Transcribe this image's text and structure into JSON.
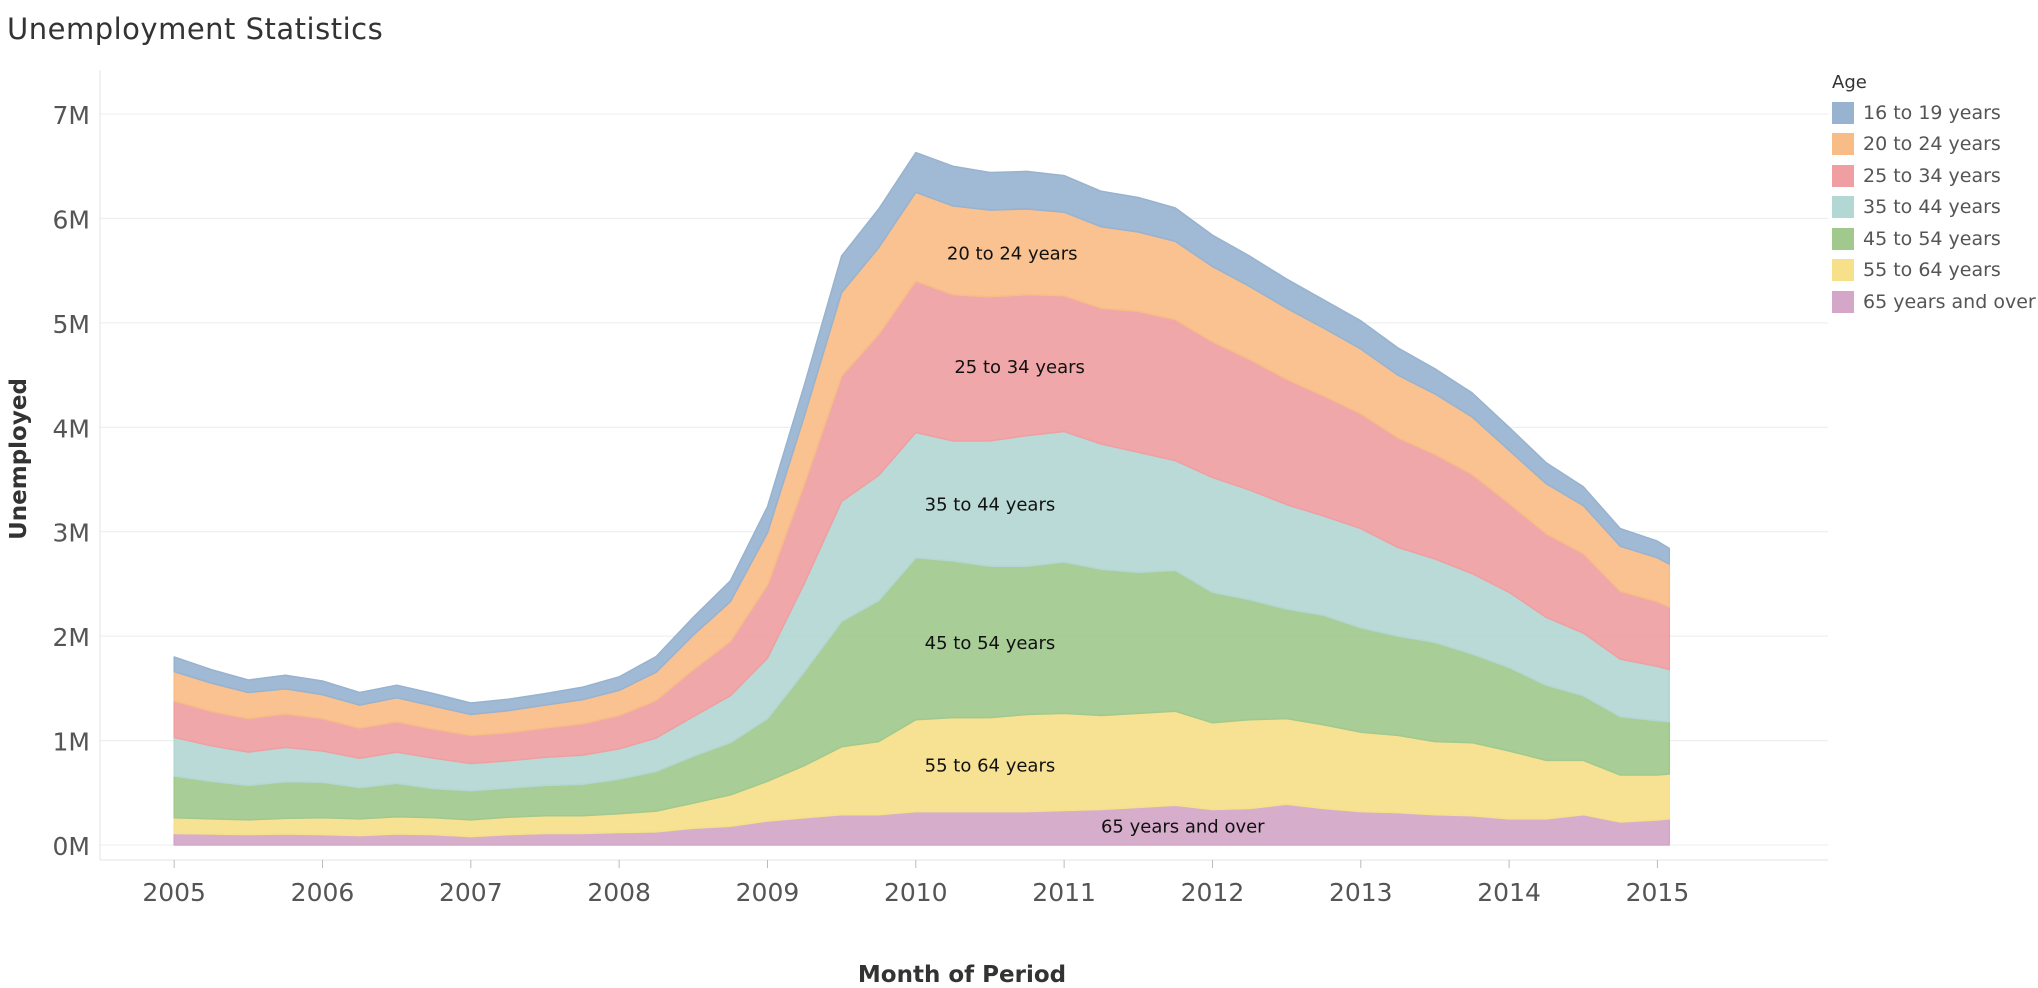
{
  "title": "Unemployment Statistics",
  "chart_data": {
    "type": "area",
    "stacked": true,
    "title": "Unemployment Statistics",
    "xlabel": "Month of Period",
    "ylabel": "Unemployed",
    "ylim": [
      0,
      7500000
    ],
    "xlim": [
      2004.5,
      2016.15
    ],
    "yticks": [
      {
        "value": 0,
        "label": "0M"
      },
      {
        "value": 1000000,
        "label": "1M"
      },
      {
        "value": 2000000,
        "label": "2M"
      },
      {
        "value": 3000000,
        "label": "3M"
      },
      {
        "value": 4000000,
        "label": "4M"
      },
      {
        "value": 5000000,
        "label": "5M"
      },
      {
        "value": 6000000,
        "label": "6M"
      },
      {
        "value": 7000000,
        "label": "7M"
      }
    ],
    "xticks": [
      {
        "value": 2005,
        "label": "2005"
      },
      {
        "value": 2006,
        "label": "2006"
      },
      {
        "value": 2007,
        "label": "2007"
      },
      {
        "value": 2008,
        "label": "2008"
      },
      {
        "value": 2009,
        "label": "2009"
      },
      {
        "value": 2010,
        "label": "2010"
      },
      {
        "value": 2011,
        "label": "2011"
      },
      {
        "value": 2012,
        "label": "2012"
      },
      {
        "value": 2013,
        "label": "2013"
      },
      {
        "value": 2014,
        "label": "2014"
      },
      {
        "value": 2015,
        "label": "2015"
      }
    ],
    "legend_title": "Age",
    "legend_position": "right",
    "x": [
      2005.0,
      2005.25,
      2005.5,
      2005.75,
      2006.0,
      2006.25,
      2006.5,
      2006.75,
      2007.0,
      2007.25,
      2007.5,
      2007.75,
      2008.0,
      2008.25,
      2008.5,
      2008.75,
      2009.0,
      2009.25,
      2009.5,
      2009.75,
      2010.0,
      2010.25,
      2010.5,
      2010.75,
      2011.0,
      2011.25,
      2011.5,
      2011.75,
      2012.0,
      2012.25,
      2012.5,
      2012.75,
      2013.0,
      2013.25,
      2013.5,
      2013.75,
      2014.0,
      2014.25,
      2014.5,
      2014.75,
      2015.0,
      2015.08
    ],
    "series": [
      {
        "name": "65 years and over",
        "color": "#d4a6c8",
        "label_at": 2011.8,
        "values": [
          110000,
          105000,
          100000,
          105000,
          100000,
          90000,
          105000,
          100000,
          80000,
          100000,
          110000,
          110000,
          120000,
          125000,
          160000,
          180000,
          230000,
          260000,
          290000,
          290000,
          320000,
          320000,
          320000,
          320000,
          330000,
          340000,
          360000,
          380000,
          340000,
          350000,
          390000,
          350000,
          320000,
          310000,
          290000,
          280000,
          250000,
          250000,
          290000,
          220000,
          240000,
          250000
        ]
      },
      {
        "name": "55 to 64 years",
        "color": "#f6e08a",
        "label_at": 2010.5,
        "values": [
          150000,
          145000,
          140000,
          150000,
          160000,
          160000,
          165000,
          160000,
          160000,
          165000,
          170000,
          170000,
          180000,
          200000,
          240000,
          300000,
          380000,
          500000,
          650000,
          700000,
          880000,
          900000,
          900000,
          930000,
          930000,
          900000,
          900000,
          900000,
          830000,
          850000,
          820000,
          800000,
          760000,
          740000,
          700000,
          700000,
          650000,
          560000,
          520000,
          450000,
          430000,
          430000
        ]
      },
      {
        "name": "45 to 54 years",
        "color": "#a1c98e",
        "label_at": 2010.5,
        "values": [
          400000,
          360000,
          330000,
          350000,
          340000,
          300000,
          320000,
          280000,
          280000,
          280000,
          290000,
          300000,
          330000,
          380000,
          450000,
          500000,
          600000,
          900000,
          1200000,
          1350000,
          1550000,
          1500000,
          1450000,
          1420000,
          1450000,
          1400000,
          1350000,
          1350000,
          1250000,
          1150000,
          1050000,
          1050000,
          1000000,
          950000,
          950000,
          850000,
          800000,
          720000,
          620000,
          560000,
          520000,
          500000
        ]
      },
      {
        "name": "35 to 44 years",
        "color": "#b3d7d2",
        "label_at": 2010.5,
        "values": [
          370000,
          340000,
          320000,
          330000,
          300000,
          280000,
          300000,
          290000,
          260000,
          260000,
          270000,
          280000,
          290000,
          320000,
          380000,
          450000,
          580000,
          850000,
          1150000,
          1200000,
          1200000,
          1150000,
          1200000,
          1250000,
          1250000,
          1200000,
          1150000,
          1050000,
          1100000,
          1050000,
          1000000,
          950000,
          950000,
          850000,
          800000,
          770000,
          720000,
          650000,
          600000,
          550000,
          520000,
          500000
        ]
      },
      {
        "name": "25 to 34 years",
        "color": "#ef9fa2",
        "label_at": 2010.7,
        "values": [
          350000,
          330000,
          320000,
          320000,
          310000,
          290000,
          290000,
          280000,
          270000,
          270000,
          280000,
          300000,
          320000,
          360000,
          450000,
          520000,
          700000,
          950000,
          1200000,
          1350000,
          1450000,
          1400000,
          1380000,
          1350000,
          1300000,
          1300000,
          1350000,
          1350000,
          1300000,
          1250000,
          1200000,
          1150000,
          1100000,
          1050000,
          1000000,
          950000,
          850000,
          800000,
          760000,
          650000,
          620000,
          600000
        ]
      },
      {
        "name": "20 to 24 years",
        "color": "#f8bd87",
        "label_at": 2010.65,
        "values": [
          280000,
          270000,
          250000,
          240000,
          230000,
          220000,
          230000,
          220000,
          200000,
          210000,
          220000,
          230000,
          240000,
          270000,
          330000,
          380000,
          500000,
          650000,
          800000,
          830000,
          850000,
          850000,
          830000,
          820000,
          800000,
          780000,
          760000,
          750000,
          720000,
          700000,
          680000,
          650000,
          620000,
          600000,
          580000,
          550000,
          510000,
          480000,
          460000,
          430000,
          420000,
          410000
        ]
      },
      {
        "name": "16 to 19 years",
        "color": "#98b3d0",
        "label_at": null,
        "values": [
          140000,
          130000,
          120000,
          130000,
          130000,
          120000,
          120000,
          120000,
          110000,
          110000,
          110000,
          120000,
          130000,
          150000,
          170000,
          200000,
          250000,
          300000,
          350000,
          370000,
          380000,
          380000,
          360000,
          360000,
          350000,
          340000,
          330000,
          320000,
          300000,
          290000,
          280000,
          270000,
          270000,
          260000,
          240000,
          230000,
          220000,
          200000,
          180000,
          170000,
          160000,
          150000
        ]
      }
    ]
  }
}
